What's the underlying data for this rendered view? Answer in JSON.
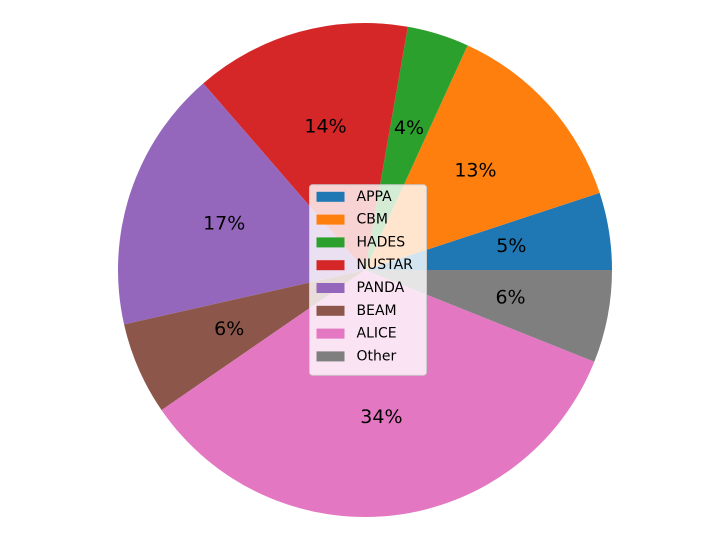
{
  "chart_data": {
    "type": "pie",
    "categories": [
      "APPA",
      "CBM",
      "HADES",
      "NUSTAR",
      "PANDA",
      "BEAM",
      "ALICE",
      "Other"
    ],
    "values": [
      5,
      13,
      4,
      14,
      17,
      6,
      34,
      6
    ],
    "value_labels": [
      "5%",
      "13%",
      "4%",
      "14%",
      "17%",
      "6%",
      "34%",
      "6%"
    ],
    "colors": [
      "#1f77b4",
      "#ff7f0e",
      "#2ca02c",
      "#d62728",
      "#9467bd",
      "#8c564b",
      "#e377c2",
      "#7f7f7f"
    ],
    "legend": "center"
  }
}
